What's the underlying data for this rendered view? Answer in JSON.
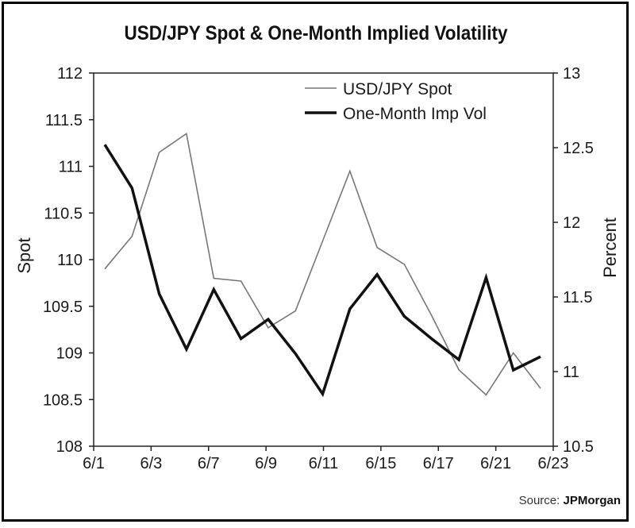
{
  "chart_data": {
    "type": "line",
    "title": "USD/JPY Spot & One-Month Implied Volatility",
    "ylabel": "Spot",
    "y2label": "Percent",
    "ylim": [
      108,
      112
    ],
    "y2lim": [
      10.5,
      13
    ],
    "yticks": [
      "112",
      "111.5",
      "111",
      "110.5",
      "110",
      "109.5",
      "109",
      "108.5",
      "108"
    ],
    "y2ticks": [
      "13",
      "12.5",
      "12",
      "11.5",
      "11",
      "10.5"
    ],
    "xticks": [
      "6/1",
      "6/3",
      "6/7",
      "6/9",
      "6/11",
      "6/15",
      "6/17",
      "6/21",
      "6/23"
    ],
    "legend_position": "top-right",
    "series": [
      {
        "name": "USD/JPY Spot",
        "axis": "left",
        "color": "#777777",
        "width": "thin",
        "values": [
          109.9,
          110.25,
          111.15,
          111.35,
          109.8,
          109.77,
          109.27,
          109.45,
          110.2,
          110.95,
          110.13,
          109.95,
          109.4,
          108.82,
          108.55,
          109.0,
          108.62
        ]
      },
      {
        "name": "One-Month Imp Vol",
        "axis": "right",
        "color": "#111111",
        "width": "thick",
        "values": [
          12.52,
          12.23,
          11.52,
          11.15,
          11.55,
          11.22,
          11.35,
          11.12,
          10.85,
          11.42,
          11.65,
          11.37,
          11.22,
          11.08,
          11.63,
          11.01,
          11.1
        ]
      }
    ]
  },
  "source": {
    "prefix": "Source: ",
    "name": "JPMorgan"
  }
}
